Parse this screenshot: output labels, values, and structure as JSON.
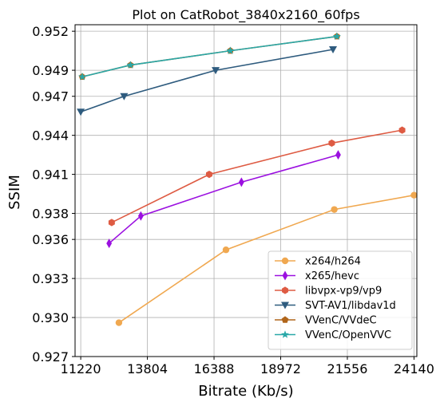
{
  "chart_data": {
    "type": "line",
    "title": "Plot on CatRobot_3840x2160_60fps",
    "xlabel": "Bitrate (Kb/s)",
    "ylabel": "SSIM",
    "xlim": [
      11000,
      24250
    ],
    "ylim": [
      0.927,
      0.9525
    ],
    "x_ticks": [
      11220,
      13804,
      16388,
      18972,
      21556,
      24140
    ],
    "x_tick_labels": [
      "11220",
      "13804",
      "16388",
      "18972",
      "21556",
      "24140"
    ],
    "y_ticks": [
      0.927,
      0.93,
      0.933,
      0.936,
      0.938,
      0.941,
      0.944,
      0.947,
      0.949,
      0.952
    ],
    "y_tick_labels": [
      "0.927",
      "0.930",
      "0.933",
      "0.936",
      "0.938",
      "0.941",
      "0.944",
      "0.947",
      "0.949",
      "0.952"
    ],
    "grid": true,
    "legend_position": "bottom-right",
    "series": [
      {
        "name": "x264/h264",
        "color": "#f0a850",
        "marker": "circle",
        "points": [
          [
            12700,
            0.9296
          ],
          [
            16850,
            0.9352
          ],
          [
            21050,
            0.9383
          ],
          [
            24140,
            0.9394
          ]
        ]
      },
      {
        "name": "x265/hevc",
        "color": "#9b10e0",
        "marker": "thin_diamond",
        "points": [
          [
            12320,
            0.9357
          ],
          [
            13550,
            0.9378
          ],
          [
            17450,
            0.9404
          ],
          [
            21200,
            0.9425
          ]
        ]
      },
      {
        "name": "libvpx-vp9/vp9",
        "color": "#de5b43",
        "marker": "hexagon",
        "points": [
          [
            12420,
            0.9373
          ],
          [
            16200,
            0.941
          ],
          [
            20950,
            0.9434
          ],
          [
            23680,
            0.9444
          ]
        ]
      },
      {
        "name": "SVT-AV1/libdav1d",
        "color": "#2e5b7e",
        "marker": "triangle_down",
        "points": [
          [
            11220,
            0.9458
          ],
          [
            12900,
            0.947
          ],
          [
            16450,
            0.949
          ],
          [
            21000,
            0.9506
          ]
        ]
      },
      {
        "name": "VVenC/VVdeC",
        "color": "#b0651a",
        "marker": "pentagon",
        "points": [
          [
            11280,
            0.9485
          ],
          [
            13150,
            0.9494
          ],
          [
            17020,
            0.9505
          ],
          [
            21150,
            0.9516
          ]
        ]
      },
      {
        "name": "VVenC/OpenVVC",
        "color": "#2aa8a8",
        "marker": "star",
        "points": [
          [
            11280,
            0.9485
          ],
          [
            13150,
            0.9494
          ],
          [
            17020,
            0.9505
          ],
          [
            21150,
            0.9516
          ]
        ]
      }
    ]
  }
}
